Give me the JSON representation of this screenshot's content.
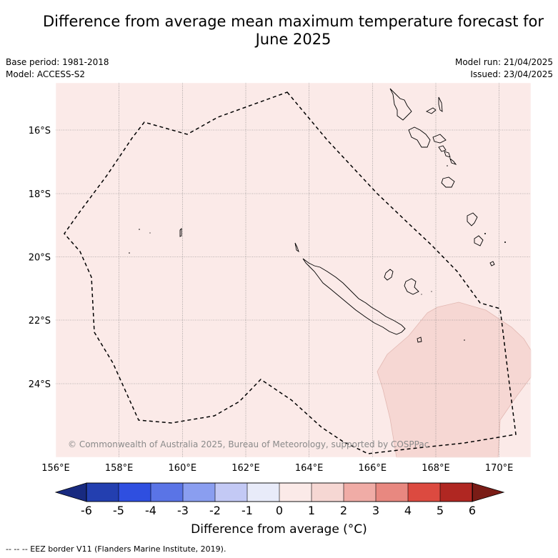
{
  "title_line1": "Difference from average mean maximum temperature forecast for",
  "title_line2": "June 2025",
  "base_period": "Base period: 1981-2018",
  "model": "Model: ACCESS-S2",
  "model_run": "Model run: 21/04/2025",
  "issued": "Issued: 23/04/2025",
  "copyright": "© Commonwealth of Australia 2025, Bureau of Meteorology, supported by COSPPac",
  "footer_note": "-- -- -- EEZ border V11 (Flanders Marine Institute, 2019).",
  "map": {
    "lon_range": [
      156,
      171
    ],
    "lat_range": [
      -26.2,
      -14.4
    ],
    "lon_ticks": [
      "156°E",
      "158°E",
      "160°E",
      "162°E",
      "164°E",
      "166°E",
      "168°E",
      "170°E"
    ],
    "lat_ticks": [
      "16°S",
      "18°S",
      "20°S",
      "22°S",
      "24°S"
    ],
    "background_category": "0 to 1",
    "anomaly_region_category": "1 to 2"
  },
  "colorbar": {
    "label": "Difference from average (°C)",
    "ticks": [
      "-6",
      "-5",
      "-4",
      "-3",
      "-2",
      "-1",
      "0",
      "1",
      "2",
      "3",
      "4",
      "5",
      "6"
    ],
    "colors": [
      "#182a80",
      "#233fb0",
      "#2f4fe0",
      "#5a74e6",
      "#8a9ef0",
      "#c3c9f5",
      "#e8ebf9",
      "#fbeae8",
      "#f6d7d3",
      "#f0aca6",
      "#e88880",
      "#dc4a40",
      "#b02722",
      "#7a1c16"
    ]
  }
}
